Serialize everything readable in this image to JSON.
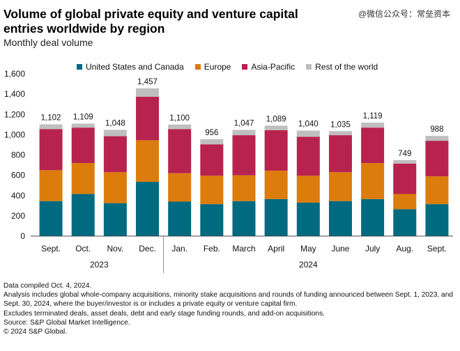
{
  "header": {
    "title": "Volume of global private equity and venture capital entries worldwide by region",
    "subtitle": "Monthly deal volume",
    "watermark": "@微信公众号：常垒资本"
  },
  "notes": [
    "Data compiled Oct. 4, 2024.",
    "Analysis includes global whole-company acquisitions, minority stake acquisitions and rounds of funding announced between Sept. 1, 2023, and Sept. 30, 2024, where the buyer/investor is or includes a private equity or venture capital firm.",
    "Excludes terminated deals, asset deals, debt and early stage funding rounds, and add-on acquisitions.",
    "Source: S&P Global Market Intelligence.",
    "© 2024 S&P Global."
  ],
  "chart_data": {
    "type": "bar",
    "stacked": true,
    "categories": [
      "Sept.",
      "Oct.",
      "Nov.",
      "Dec.",
      "Jan.",
      "Feb.",
      "March",
      "April",
      "May",
      "June",
      "July",
      "Aug.",
      "Sept."
    ],
    "year_groups": [
      {
        "label": "2023",
        "start": 0,
        "end": 3
      },
      {
        "label": "2024",
        "start": 4,
        "end": 12
      }
    ],
    "ylim": [
      0,
      1600
    ],
    "yticks": [
      0,
      200,
      400,
      600,
      800,
      1000,
      1200,
      1400,
      1600
    ],
    "ytick_labels": [
      "0",
      "200",
      "400",
      "600",
      "800",
      "1,000",
      "1,200",
      "1,400",
      "1,600"
    ],
    "legend_position": "top",
    "series": [
      {
        "name": "United States and Canada",
        "color": "#006A80",
        "values": [
          345,
          415,
          325,
          535,
          340,
          315,
          345,
          365,
          330,
          345,
          365,
          265,
          315
        ]
      },
      {
        "name": "Europe",
        "color": "#DB7C0C",
        "values": [
          305,
          305,
          305,
          410,
          280,
          280,
          255,
          280,
          265,
          285,
          355,
          150,
          275
        ]
      },
      {
        "name": "Asia-Pacific",
        "color": "#B7234E",
        "values": [
          405,
          350,
          355,
          430,
          435,
          310,
          395,
          400,
          385,
          365,
          350,
          300,
          350
        ]
      },
      {
        "name": "Rest of the world",
        "color": "#BFBFBF",
        "values": [
          47,
          39,
          63,
          82,
          45,
          51,
          52,
          44,
          60,
          40,
          49,
          34,
          48
        ]
      }
    ],
    "totals": [
      1102,
      1109,
      1048,
      1457,
      1100,
      956,
      1047,
      1089,
      1040,
      1035,
      1119,
      749,
      988
    ],
    "total_labels": [
      "1,102",
      "1,109",
      "1,048",
      "1,457",
      "1,100",
      "956",
      "1,047",
      "1,089",
      "1,040",
      "1,035",
      "1,119",
      "749",
      "988"
    ],
    "grid": false
  }
}
